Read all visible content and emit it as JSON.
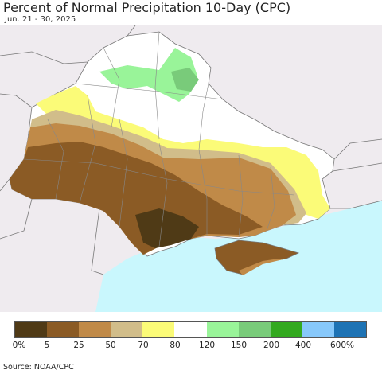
{
  "header": {
    "title": "Percent of Normal Precipitation 10-Day (CPC)",
    "subtitle": "Jun. 21 - 30, 2025"
  },
  "legend": {
    "bins": [
      {
        "color": "#4f3a16"
      },
      {
        "color": "#8b5b25"
      },
      {
        "color": "#c08a48"
      },
      {
        "color": "#d1bd8a"
      },
      {
        "color": "#fbfb78"
      },
      {
        "color": "#ffffff"
      },
      {
        "color": "#99f499"
      },
      {
        "color": "#79cb7a"
      },
      {
        "color": "#33a91f"
      },
      {
        "color": "#87c8fa"
      },
      {
        "color": "#1e73b4"
      }
    ],
    "ticks": [
      "0%",
      "5",
      "25",
      "50",
      "70",
      "80",
      "120",
      "150",
      "200",
      "400",
      "600%"
    ]
  },
  "source": "Source: NOAA/CPC",
  "colors": {
    "sea": "#c9f7fd",
    "outside_land": "#efebef",
    "border": "#777777"
  }
}
